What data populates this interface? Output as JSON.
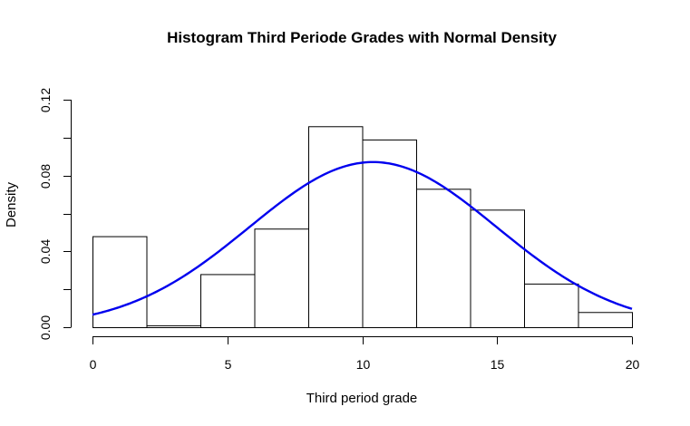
{
  "chart_data": {
    "type": "bar",
    "title": "Histogram Third Periode Grades with Normal Density",
    "xlabel": "Third period grade",
    "ylabel": "Density",
    "xlim": [
      0,
      20
    ],
    "ylim": [
      0,
      0.12
    ],
    "x_ticks": [
      0,
      5,
      10,
      15,
      20
    ],
    "x_tick_labels": [
      "0",
      "5",
      "10",
      "15",
      "20"
    ],
    "y_ticks": [
      0,
      0.02,
      0.04,
      0.06,
      0.08,
      0.1,
      0.12
    ],
    "y_tick_labels": [
      "0.00",
      "",
      "0.04",
      "",
      "0.08",
      "",
      "0.12"
    ],
    "bins": [
      {
        "from": 0,
        "to": 2,
        "density": 0.048
      },
      {
        "from": 2,
        "to": 4,
        "density": 0.001
      },
      {
        "from": 4,
        "to": 6,
        "density": 0.028
      },
      {
        "from": 6,
        "to": 8,
        "density": 0.052
      },
      {
        "from": 8,
        "to": 10,
        "density": 0.106
      },
      {
        "from": 10,
        "to": 12,
        "density": 0.099
      },
      {
        "from": 12,
        "to": 14,
        "density": 0.073
      },
      {
        "from": 14,
        "to": 16,
        "density": 0.062
      },
      {
        "from": 16,
        "to": 18,
        "density": 0.023
      },
      {
        "from": 18,
        "to": 20,
        "density": 0.008
      }
    ],
    "normal_curve": {
      "mean": 10.4,
      "sd": 4.58,
      "color": "#0000ee"
    },
    "grid": false,
    "legend": "none"
  }
}
